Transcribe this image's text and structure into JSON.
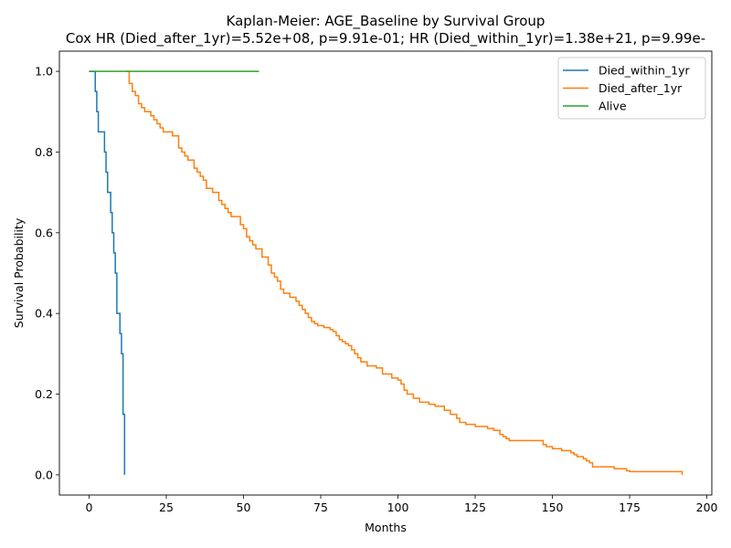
{
  "chart_data": {
    "type": "line",
    "title": "Kaplan-Meier: AGE_Baseline by Survival Group",
    "subtitle": "Cox HR (Died_after_1yr)=5.52e+08, p=9.91e-01; HR (Died_within_1yr)=1.38e+21, p=9.99e-",
    "xlabel": "Months",
    "ylabel": "Survival Probability",
    "xlim": [
      -9.6,
      201.6
    ],
    "ylim": [
      -0.05,
      1.05
    ],
    "xticks": [
      0,
      25,
      50,
      75,
      100,
      125,
      150,
      175,
      200
    ],
    "yticks": [
      0.0,
      0.2,
      0.4,
      0.6,
      0.8,
      1.0
    ],
    "ytick_labels": [
      "0.0",
      "0.2",
      "0.4",
      "0.6",
      "0.8",
      "1.0"
    ],
    "grid": false,
    "legend_position": "top-right",
    "step": true,
    "series": [
      {
        "name": "Died_within_1yr",
        "color": "#1f77b4",
        "x": [
          0,
          2,
          2.5,
          3,
          4,
          5,
          5.5,
          6,
          7,
          7.5,
          8,
          8.5,
          9,
          10,
          10.5,
          11,
          11.5
        ],
        "y": [
          1.0,
          0.95,
          0.9,
          0.85,
          0.85,
          0.8,
          0.75,
          0.7,
          0.65,
          0.6,
          0.55,
          0.5,
          0.4,
          0.35,
          0.3,
          0.15,
          0.0
        ]
      },
      {
        "name": "Died_after_1yr",
        "color": "#ff7f0e",
        "x": [
          12,
          13,
          14,
          15,
          16,
          17,
          18,
          20,
          21,
          22,
          23,
          24,
          25,
          27,
          29,
          30,
          31,
          32,
          34,
          35,
          36,
          37,
          38,
          40,
          42,
          43,
          44,
          45,
          46,
          49,
          50,
          51,
          52,
          53,
          54,
          56,
          57,
          58,
          59,
          60,
          61,
          62,
          63,
          65,
          66,
          67,
          68,
          69,
          70,
          71,
          72,
          73,
          74,
          76,
          78,
          79,
          80,
          81,
          82,
          83,
          84,
          85,
          86,
          87,
          88,
          90,
          93,
          95,
          98,
          100,
          101,
          102,
          103,
          105,
          107,
          110,
          112,
          115,
          117,
          119,
          120,
          122,
          125,
          129,
          131,
          133,
          134,
          135,
          136,
          137,
          147,
          148,
          150,
          153,
          156,
          157,
          158,
          160,
          161,
          162,
          163,
          164,
          170,
          174,
          175,
          192
        ],
        "y": [
          1.0,
          0.97,
          0.95,
          0.94,
          0.92,
          0.91,
          0.9,
          0.89,
          0.88,
          0.87,
          0.86,
          0.85,
          0.85,
          0.84,
          0.81,
          0.8,
          0.79,
          0.78,
          0.76,
          0.75,
          0.74,
          0.73,
          0.71,
          0.7,
          0.68,
          0.67,
          0.66,
          0.65,
          0.64,
          0.62,
          0.61,
          0.59,
          0.58,
          0.57,
          0.56,
          0.54,
          0.54,
          0.52,
          0.5,
          0.49,
          0.48,
          0.46,
          0.45,
          0.44,
          0.44,
          0.43,
          0.42,
          0.41,
          0.4,
          0.39,
          0.38,
          0.375,
          0.37,
          0.365,
          0.36,
          0.355,
          0.345,
          0.335,
          0.33,
          0.325,
          0.32,
          0.31,
          0.3,
          0.29,
          0.28,
          0.27,
          0.265,
          0.25,
          0.24,
          0.235,
          0.225,
          0.21,
          0.2,
          0.19,
          0.18,
          0.175,
          0.17,
          0.16,
          0.15,
          0.14,
          0.13,
          0.125,
          0.12,
          0.115,
          0.11,
          0.1,
          0.095,
          0.09,
          0.085,
          0.085,
          0.075,
          0.07,
          0.065,
          0.06,
          0.055,
          0.05,
          0.045,
          0.04,
          0.035,
          0.03,
          0.02,
          0.02,
          0.015,
          0.01,
          0.008,
          0.0
        ]
      },
      {
        "name": "Alive",
        "color": "#2ca02c",
        "x": [
          0,
          55
        ],
        "y": [
          1.0,
          1.0
        ]
      }
    ]
  }
}
